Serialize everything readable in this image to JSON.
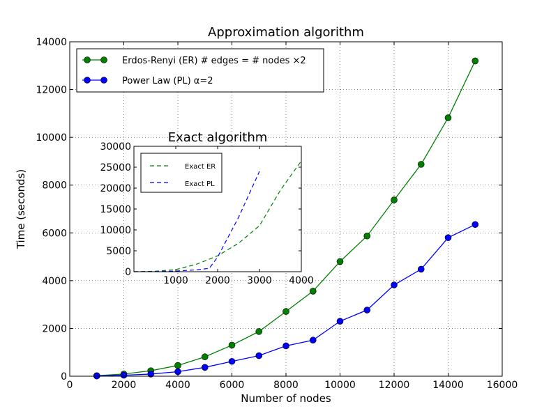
{
  "chart_data": [
    {
      "type": "line",
      "title": "Approximation algorithm",
      "xlabel": "Number of nodes",
      "ylabel": "Time (seconds)",
      "xlim": [
        0,
        16000
      ],
      "ylim": [
        0,
        14000
      ],
      "x_ticks": [
        0,
        2000,
        4000,
        6000,
        8000,
        10000,
        12000,
        14000,
        16000
      ],
      "y_ticks": [
        0,
        2000,
        4000,
        6000,
        8000,
        10000,
        12000,
        14000
      ],
      "grid": true,
      "legend_position": "top-left",
      "series": [
        {
          "name": "Erdos-Renyi (ER) # edges = # nodes ×2",
          "color": "#007f00",
          "marker": "circle",
          "x": [
            1000,
            2000,
            3000,
            4000,
            5000,
            6000,
            7000,
            8000,
            9000,
            10000,
            11000,
            12000,
            13000,
            14000,
            15000
          ],
          "values": [
            20,
            90,
            230,
            450,
            810,
            1300,
            1870,
            2710,
            3560,
            4800,
            5870,
            7380,
            8870,
            10820,
            13200
          ]
        },
        {
          "name": "Power Law (PL) α=2",
          "color": "#0000ff",
          "marker": "circle",
          "x": [
            1000,
            2000,
            3000,
            4000,
            5000,
            6000,
            7000,
            8000,
            9000,
            10000,
            11000,
            12000,
            13000,
            14000,
            15000
          ],
          "values": [
            10,
            40,
            90,
            190,
            370,
            620,
            860,
            1270,
            1510,
            2300,
            2770,
            3820,
            4480,
            5800,
            6350
          ]
        }
      ]
    },
    {
      "type": "line",
      "title": "Exact algorithm",
      "xlabel": "",
      "ylabel": "",
      "xlim": [
        0,
        4000
      ],
      "ylim": [
        0,
        30000
      ],
      "x_ticks": [
        1000,
        2000,
        3000,
        4000
      ],
      "y_ticks": [
        0,
        5000,
        10000,
        15000,
        20000,
        25000,
        30000
      ],
      "grid": false,
      "legend_position": "top-left",
      "series": [
        {
          "name": "Exact ER",
          "color": "#007f00",
          "style": "dashed",
          "x": [
            0,
            500,
            1000,
            1500,
            2000,
            2500,
            3000,
            3500,
            4000
          ],
          "values": [
            0,
            100,
            500,
            1800,
            3800,
            6800,
            11000,
            19500,
            26500
          ]
        },
        {
          "name": "Exact PL",
          "color": "#0000ff",
          "style": "dashed",
          "x": [
            0,
            500,
            1000,
            1500,
            1800,
            2000,
            2500,
            3000
          ],
          "values": [
            0,
            50,
            150,
            450,
            800,
            3500,
            13000,
            24000
          ]
        }
      ]
    }
  ]
}
